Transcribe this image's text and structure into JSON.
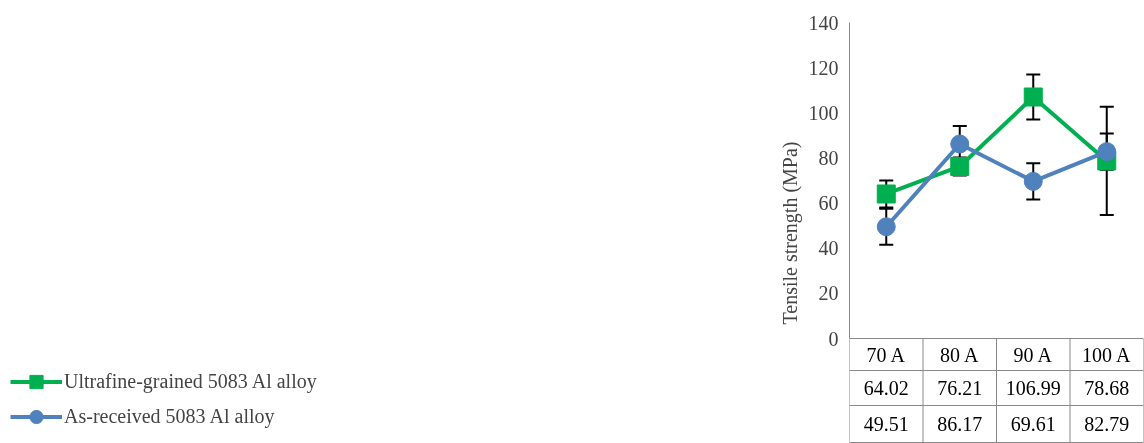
{
  "chart_data": {
    "type": "line",
    "ylabel": "Tensile strength (MPa)",
    "categories": [
      "70 A",
      "80 A",
      "90 A",
      "100 A"
    ],
    "series": [
      {
        "name": "Ultrafine-grained 5083 Al alloy",
        "color": "#00b050",
        "marker": "square",
        "values": [
          64.02,
          76.21,
          106.99,
          78.68
        ],
        "errors": [
          6,
          4,
          10,
          24
        ]
      },
      {
        "name": "As-received 5083 Al alloy",
        "color": "#4f81bd",
        "marker": "circle",
        "values": [
          49.51,
          86.17,
          69.61,
          82.79
        ],
        "errors": [
          8,
          8,
          8,
          8
        ]
      }
    ],
    "ylim": [
      0,
      140
    ],
    "yticks": [
      0,
      20,
      40,
      60,
      80,
      100,
      120,
      140
    ],
    "grid": false,
    "legend": "bottom",
    "data_labels": true
  }
}
